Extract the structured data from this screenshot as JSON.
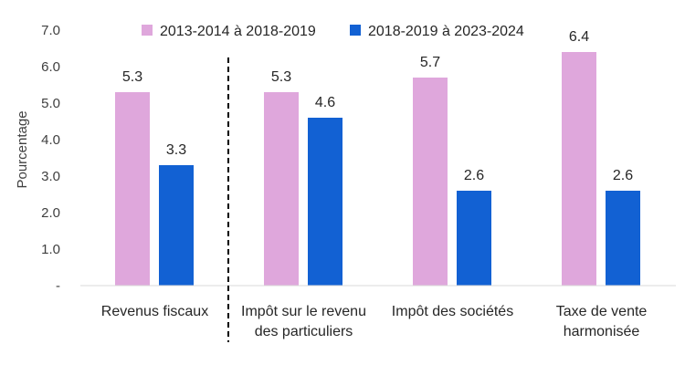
{
  "chart_data": {
    "type": "bar",
    "categories": [
      [
        "Revenus fiscaux"
      ],
      [
        "Impôt sur le revenu",
        "des particuliers"
      ],
      [
        "Impôt des sociétés"
      ],
      [
        "Taxe de vente",
        "harmonisée"
      ]
    ],
    "series": [
      {
        "name": "2013-2014 à 2018-2019",
        "color": "#dfa7dc",
        "values": [
          5.3,
          5.3,
          5.7,
          6.4
        ]
      },
      {
        "name": "2018-2019 à 2023-2024",
        "color": "#1261d3",
        "values": [
          3.3,
          4.6,
          2.6,
          2.6
        ]
      }
    ],
    "data_labels": [
      [
        "5.3",
        "5.3",
        "5.7",
        "6.4"
      ],
      [
        "3.3",
        "4.6",
        "2.6",
        "2.6"
      ]
    ],
    "ylabel": "Pourcentage",
    "ylim": [
      0,
      7.0
    ],
    "yticks": [
      0,
      1.0,
      2.0,
      3.0,
      4.0,
      5.0,
      6.0,
      7.0
    ],
    "ytick_labels": [
      "-",
      "1.0",
      "2.0",
      "3.0",
      "4.0",
      "5.0",
      "6.0",
      "7.0"
    ],
    "grid": false,
    "legend_position": "top",
    "separator_after_category": 0
  }
}
